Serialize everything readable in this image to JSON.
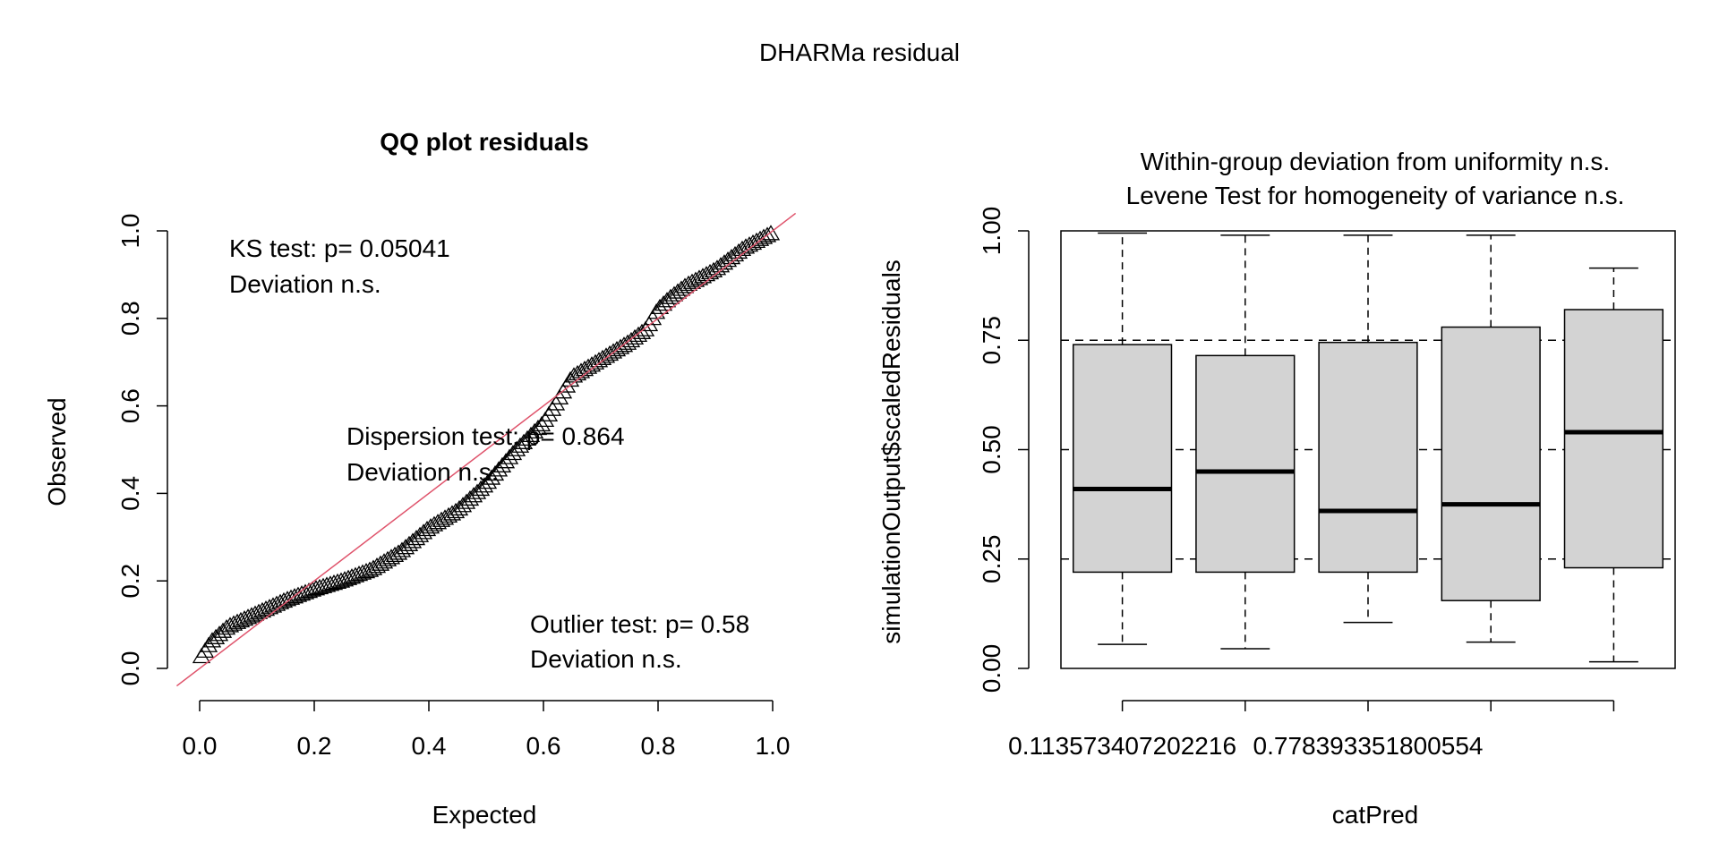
{
  "figure": {
    "title": "DHARMa residual"
  },
  "chart_data": [
    {
      "type": "scatter",
      "title": "QQ plot residuals",
      "xlabel": "Expected",
      "ylabel": "Observed",
      "xlim": [
        0,
        1
      ],
      "ylim": [
        0,
        1
      ],
      "xticks": [
        "0.0",
        "0.2",
        "0.4",
        "0.6",
        "0.8",
        "1.0"
      ],
      "yticks": [
        "0.0",
        "0.2",
        "0.4",
        "0.6",
        "0.8",
        "1.0"
      ],
      "reference_line": {
        "slope": 1,
        "intercept": 0,
        "color": "#DF536B"
      },
      "marker": "triangle-open",
      "qq_curve": [
        [
          0.0,
          0.02
        ],
        [
          0.02,
          0.06
        ],
        [
          0.05,
          0.095
        ],
        [
          0.1,
          0.125
        ],
        [
          0.15,
          0.155
        ],
        [
          0.2,
          0.18
        ],
        [
          0.25,
          0.2
        ],
        [
          0.3,
          0.225
        ],
        [
          0.35,
          0.265
        ],
        [
          0.4,
          0.32
        ],
        [
          0.45,
          0.36
        ],
        [
          0.5,
          0.42
        ],
        [
          0.55,
          0.495
        ],
        [
          0.6,
          0.56
        ],
        [
          0.62,
          0.6
        ],
        [
          0.65,
          0.665
        ],
        [
          0.7,
          0.705
        ],
        [
          0.75,
          0.745
        ],
        [
          0.78,
          0.775
        ],
        [
          0.8,
          0.82
        ],
        [
          0.82,
          0.845
        ],
        [
          0.85,
          0.875
        ],
        [
          0.9,
          0.91
        ],
        [
          0.95,
          0.96
        ],
        [
          1.0,
          0.995
        ]
      ],
      "annotations": {
        "ks_line1": "KS test: p= 0.05041",
        "ks_line2": "Deviation  n.s.",
        "disp_line1": "Dispersion test: p= 0.864",
        "disp_line2": "Deviation  n.s.",
        "out_line1": "Outlier test: p= 0.58",
        "out_line2": "Deviation  n.s."
      }
    },
    {
      "type": "boxplot",
      "title_line1": "Within-group deviation from uniformity n.s.",
      "title_line2": "Levene Test for homogeneity of variance n.s.",
      "xlabel": "catPred",
      "ylabel": "simulationOutput$scaledResiduals",
      "ylim": [
        0,
        1
      ],
      "yticks": [
        "0.00",
        "0.25",
        "0.50",
        "0.75",
        "1.00"
      ],
      "xtick_labels": [
        "0.113573407202216",
        "",
        "0.778393351800554",
        "",
        ""
      ],
      "reference_lines": [
        0.25,
        0.5,
        0.75
      ],
      "box_color": "#D3D3D3",
      "boxes": [
        {
          "whisker_low": 0.055,
          "q1": 0.22,
          "median": 0.41,
          "q3": 0.74,
          "whisker_high": 0.995
        },
        {
          "whisker_low": 0.045,
          "q1": 0.22,
          "median": 0.45,
          "q3": 0.715,
          "whisker_high": 0.99
        },
        {
          "whisker_low": 0.105,
          "q1": 0.22,
          "median": 0.36,
          "q3": 0.745,
          "whisker_high": 0.99
        },
        {
          "whisker_low": 0.06,
          "q1": 0.155,
          "median": 0.375,
          "q3": 0.78,
          "whisker_high": 0.99
        },
        {
          "whisker_low": 0.015,
          "q1": 0.23,
          "median": 0.54,
          "q3": 0.82,
          "whisker_high": 0.915
        }
      ]
    }
  ]
}
